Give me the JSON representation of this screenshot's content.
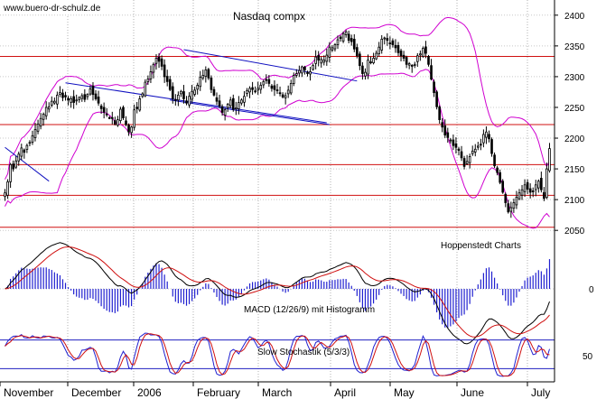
{
  "watermark": "www.buero-dr-schulz.de",
  "chart_data": {
    "type": "candlestick",
    "title": "Nasdaq compx",
    "source_label": "Hoppenstedt Charts",
    "months": [
      "November",
      "December",
      "2006",
      "February",
      "March",
      "April",
      "May",
      "June",
      "July"
    ],
    "price_panel": {
      "ylim": [
        2040,
        2410
      ],
      "yticks": [
        2050,
        2100,
        2150,
        2200,
        2250,
        2300,
        2350,
        2400
      ],
      "horizontal_levels": [
        2333,
        2222,
        2157,
        2107,
        2055
      ],
      "trendlines": [
        {
          "x0": 0,
          "y0": 2185,
          "x1": 16,
          "y1": 2130
        },
        {
          "x0": 22,
          "y0": 2290,
          "x1": 117,
          "y1": 2225
        },
        {
          "x0": 65,
          "y0": 2344,
          "x1": 128,
          "y1": 2293
        },
        {
          "x0": 60,
          "y0": 2262,
          "x1": 118,
          "y1": 2222
        }
      ],
      "close": [
        2111,
        2129,
        2157,
        2150,
        2163,
        2174,
        2184,
        2177,
        2188,
        2193,
        2204,
        2214,
        2223,
        2232,
        2239,
        2250,
        2251,
        2260,
        2260,
        2270,
        2274,
        2266,
        2267,
        2262,
        2264,
        2258,
        2262,
        2266,
        2269,
        2263,
        2271,
        2280,
        2271,
        2264,
        2257,
        2248,
        2242,
        2238,
        2233,
        2232,
        2223,
        2230,
        2247,
        2233,
        2222,
        2210,
        2218,
        2246,
        2248,
        2264,
        2272,
        2291,
        2296,
        2308,
        2320,
        2330,
        2325,
        2317,
        2300,
        2292,
        2279,
        2264,
        2262,
        2270,
        2276,
        2264,
        2257,
        2268,
        2276,
        2278,
        2286,
        2299,
        2302,
        2311,
        2298,
        2279,
        2270,
        2260,
        2252,
        2242,
        2246,
        2255,
        2262,
        2247,
        2249,
        2258,
        2262,
        2268,
        2277,
        2281,
        2279,
        2276,
        2281,
        2286,
        2292,
        2295,
        2289,
        2281,
        2279,
        2278,
        2273,
        2267,
        2269,
        2278,
        2289,
        2302,
        2305,
        2310,
        2316,
        2311,
        2305,
        2308,
        2318,
        2332,
        2327,
        2328,
        2327,
        2335,
        2348,
        2347,
        2352,
        2360,
        2362,
        2370,
        2373,
        2359,
        2357,
        2345,
        2334,
        2318,
        2305,
        2307,
        2327,
        2323,
        2330,
        2338,
        2348,
        2361,
        2363,
        2359,
        2354,
        2352,
        2347,
        2339,
        2334,
        2330,
        2320,
        2321,
        2317,
        2320,
        2334,
        2337,
        2346,
        2338,
        2320,
        2296,
        2274,
        2251,
        2230,
        2218,
        2205,
        2201,
        2197,
        2188,
        2185,
        2180,
        2168,
        2154,
        2162,
        2170,
        2179,
        2182,
        2187,
        2190,
        2206,
        2210,
        2199,
        2175,
        2155,
        2144,
        2128,
        2112,
        2095,
        2080,
        2087,
        2095,
        2104,
        2111,
        2116,
        2124,
        2117,
        2112,
        2114,
        2124,
        2130,
        2116,
        2102,
        2150,
        2183
      ]
    },
    "macd_panel": {
      "label": "MACD (12/26/9) mit Histogramm",
      "yticks": [
        0
      ],
      "ylim": [
        -30,
        35
      ]
    },
    "stochastic_panel": {
      "label": "Slow Stochastik (5/3/3)",
      "yticks": [
        50
      ],
      "ylim": [
        0,
        100
      ],
      "levels": [
        80,
        20
      ]
    }
  }
}
